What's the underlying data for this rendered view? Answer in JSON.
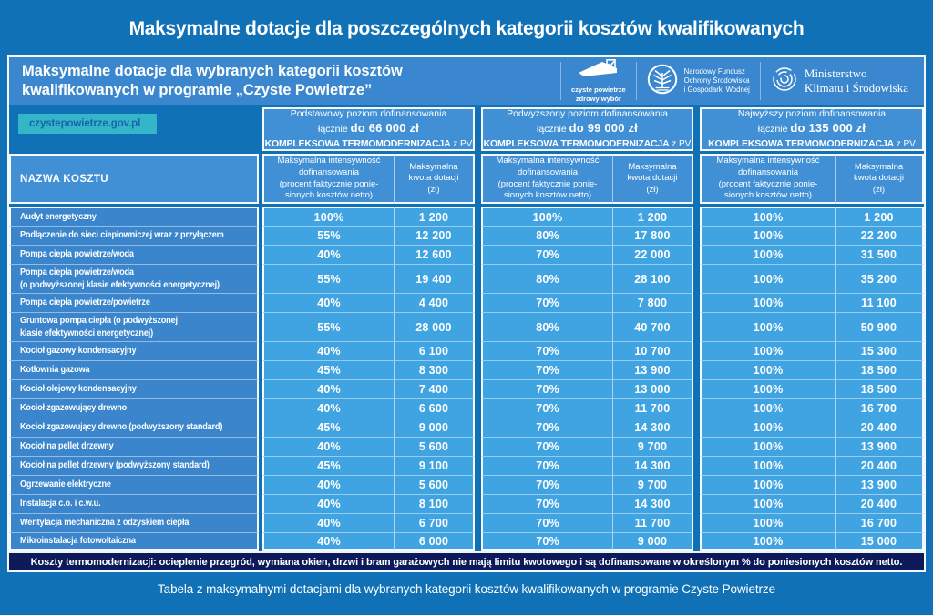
{
  "page": {
    "title": "Maksymalne dotacje dla poszczególnych kategorii kosztów kwalifikowanych",
    "caption": "Tabela z maksymalnymi dotacjami dla wybranych kategorii kosztów kwalifikowanych w programie Czyste Powietrze"
  },
  "panel": {
    "title_line1": "Maksymalne dotacje dla wybranych kategorii kosztów",
    "title_line2": "kwalifikowanych w programie „Czyste Powietrze”",
    "website": "czystepowietrze.gov.pl",
    "logos": {
      "czyste_powietrze": {
        "line1": "czyste powietrze",
        "line2": "zdrowy wybór"
      },
      "nfosigw": {
        "lines": [
          "Narodowy Fundusz",
          "Ochrony Środowiska",
          "i Gospodarki Wodnej"
        ]
      },
      "ministerstwo": {
        "lines": [
          "Ministerstwo",
          "Klimatu i Środowiska"
        ]
      }
    }
  },
  "note": "Koszty termomodernizacji: ocieplenie przegród, wymiana okien, drzwi i bram garażowych nie mają limitu kwotowego i są dofinansowane w określonym % do poniesionych kosztów netto.",
  "colors": {
    "page_bg": "#1171b6",
    "panel_header_bg": "#3a87cf",
    "header_cell_bg": "#4190d5",
    "name_cell_bg": "#3a85cc",
    "value_cell_bg": "#41a4e2",
    "website_bg": "#35b5c8",
    "website_text": "#1566ab",
    "note_bg": "#0d1a5a"
  },
  "chart_data": {
    "type": "table",
    "title": "Maksymalne dotacje dla wybranych kategorii kosztów kwalifikowanych w programie „Czyste Powietrze”",
    "name_header": "NAZWA KOSZTU",
    "groups": [
      {
        "level": "Podstawowy poziom dofinansowania",
        "total_label": "łącznie",
        "total_amount": "do 66 000 zł",
        "term_bold": "KOMPLEKSOWA TERMOMODERNIZACJA",
        "term_suffix": "z PV"
      },
      {
        "level": "Podwyższony poziom dofinansowania",
        "total_label": "łącznie",
        "total_amount": "do 99 000 zł",
        "term_bold": "KOMPLEKSOWA TERMOMODERNIZACJA",
        "term_suffix": "z PV"
      },
      {
        "level": "Najwyższy poziom dofinansowania",
        "total_label": "łącznie",
        "total_amount": "do 135 000 zł",
        "term_bold": "KOMPLEKSOWA TERMOMODERNIZACJA",
        "term_suffix": "z PV"
      }
    ],
    "sub_intensity": [
      "Maksymalna intensywność",
      "dofinansowania",
      "(procent faktycznie ponie-",
      "sionych kosztów netto)"
    ],
    "sub_amount": [
      "Maksymalna",
      "kwota dotacji",
      "(zł)"
    ],
    "rows": [
      {
        "name": [
          "Audyt energetyczny"
        ],
        "values": [
          "100%",
          "1 200",
          "100%",
          "1 200",
          "100%",
          "1 200"
        ]
      },
      {
        "name": [
          "Podłączenie do sieci ciepłowniczej wraz z przyłączem"
        ],
        "values": [
          "55%",
          "12 200",
          "80%",
          "17 800",
          "100%",
          "22 200"
        ]
      },
      {
        "name": [
          "Pompa ciepła powietrze/woda"
        ],
        "values": [
          "40%",
          "12 600",
          "70%",
          "22 000",
          "100%",
          "31 500"
        ]
      },
      {
        "name": [
          "Pompa ciepła powietrze/woda",
          "(o podwyższonej klasie efektywności energetycznej)"
        ],
        "values": [
          "55%",
          "19 400",
          "80%",
          "28 100",
          "100%",
          "35 200"
        ]
      },
      {
        "name": [
          "Pompa ciepła powietrze/powietrze"
        ],
        "values": [
          "40%",
          "4 400",
          "70%",
          "7 800",
          "100%",
          "11 100"
        ]
      },
      {
        "name": [
          "Gruntowa pompa ciepła (o podwyższonej",
          "klasie efektywności energetycznej)"
        ],
        "values": [
          "55%",
          "28 000",
          "80%",
          "40 700",
          "100%",
          "50 900"
        ]
      },
      {
        "name": [
          "Kocioł gazowy kondensacyjny"
        ],
        "values": [
          "40%",
          "6 100",
          "70%",
          "10 700",
          "100%",
          "15 300"
        ]
      },
      {
        "name": [
          "Kotłownia gazowa"
        ],
        "values": [
          "45%",
          "8 300",
          "70%",
          "13 900",
          "100%",
          "18 500"
        ]
      },
      {
        "name": [
          "Kocioł olejowy kondensacyjny"
        ],
        "values": [
          "40%",
          "7 400",
          "70%",
          "13 000",
          "100%",
          "18 500"
        ]
      },
      {
        "name": [
          "Kocioł zgazowujący drewno"
        ],
        "values": [
          "40%",
          "6 600",
          "70%",
          "11 700",
          "100%",
          "16 700"
        ]
      },
      {
        "name": [
          "Kocioł zgazowujący drewno (podwyższony standard)"
        ],
        "values": [
          "45%",
          "9 000",
          "70%",
          "14 300",
          "100%",
          "20 400"
        ]
      },
      {
        "name": [
          "Kocioł na pellet drzewny"
        ],
        "values": [
          "40%",
          "5 600",
          "70%",
          "9 700",
          "100%",
          "13 900"
        ]
      },
      {
        "name": [
          "Kocioł na pellet drzewny (podwyższony standard)"
        ],
        "values": [
          "45%",
          "9 100",
          "70%",
          "14 300",
          "100%",
          "20 400"
        ]
      },
      {
        "name": [
          "Ogrzewanie elektryczne"
        ],
        "values": [
          "40%",
          "5 600",
          "70%",
          "9 700",
          "100%",
          "13 900"
        ]
      },
      {
        "name": [
          "Instalacja c.o. i c.w.u."
        ],
        "values": [
          "40%",
          "8 100",
          "70%",
          "14 300",
          "100%",
          "20 400"
        ]
      },
      {
        "name": [
          "Wentylacja mechaniczna z odzyskiem ciepła"
        ],
        "values": [
          "40%",
          "6 700",
          "70%",
          "11 700",
          "100%",
          "16 700"
        ]
      },
      {
        "name": [
          "Mikroinstalacja fotowoltaiczna"
        ],
        "values": [
          "40%",
          "6 000",
          "70%",
          "9 000",
          "100%",
          "15 000"
        ]
      }
    ]
  }
}
